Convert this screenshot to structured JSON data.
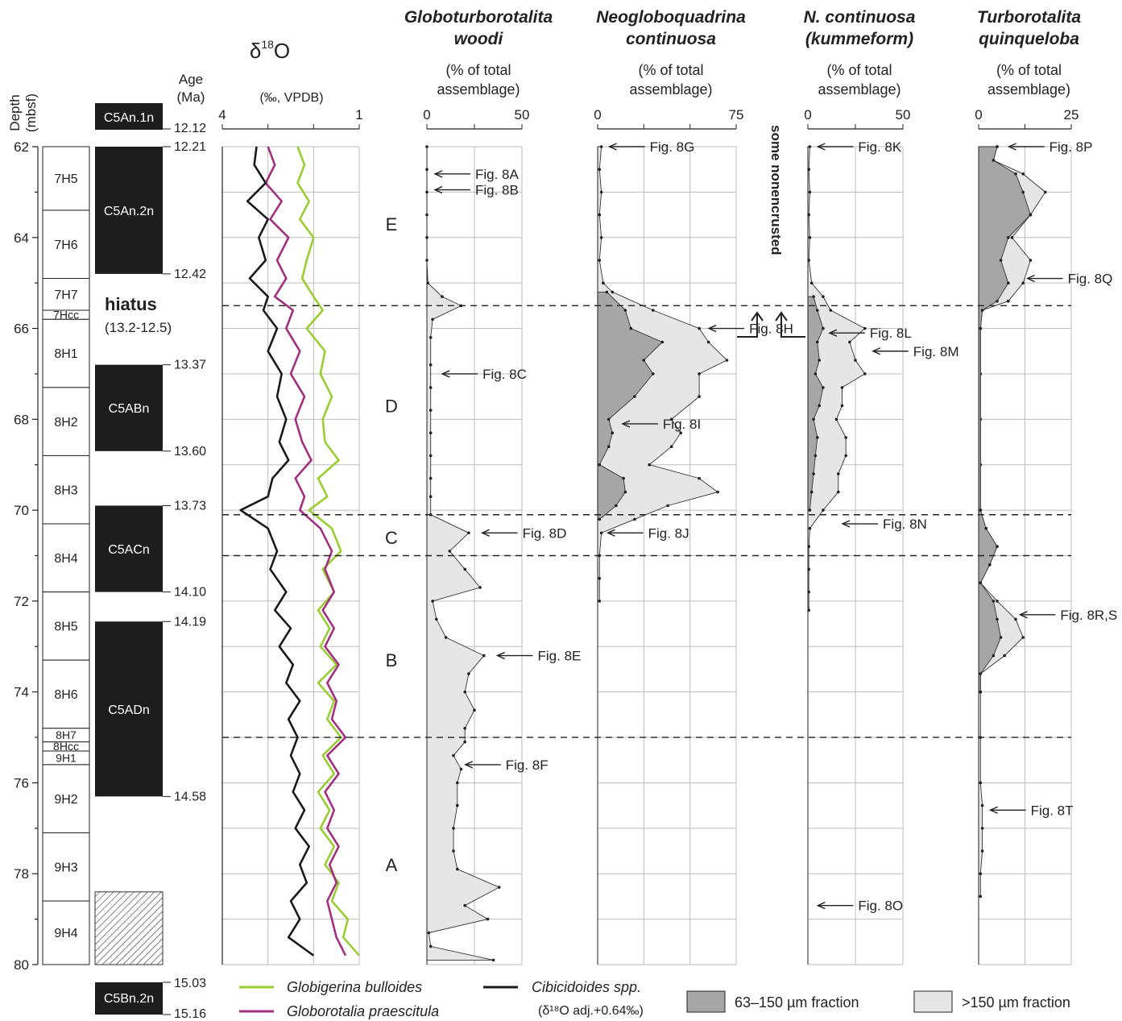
{
  "figure": {
    "depth_axis": {
      "label": "Depth",
      "unit": "(mbsf)",
      "min": 62,
      "max": 80,
      "ticks": [
        62,
        64,
        66,
        68,
        70,
        72,
        74,
        76,
        78,
        80
      ]
    },
    "age_axis": {
      "label": "Age",
      "unit": "(Ma)"
    },
    "hiatus": {
      "label": "hiatus",
      "range": "(13.2-12.5)"
    },
    "zones": [
      {
        "label": "E",
        "depth": 63.7
      },
      {
        "label": "D",
        "depth": 67.7
      },
      {
        "label": "C",
        "depth": 70.6
      },
      {
        "label": "B",
        "depth": 73.3
      },
      {
        "label": "A",
        "depth": 77.8
      }
    ],
    "zone_boundaries": [
      65.5,
      70.1,
      71.0,
      75.0
    ],
    "cores": [
      {
        "label": "7H5",
        "top": 62.0,
        "bottom": 63.4
      },
      {
        "label": "7H6",
        "top": 63.4,
        "bottom": 64.9
      },
      {
        "label": "7H7",
        "top": 64.9,
        "bottom": 65.6
      },
      {
        "label": "7Hcc",
        "top": 65.6,
        "bottom": 65.8
      },
      {
        "label": "8H1",
        "top": 65.8,
        "bottom": 67.3
      },
      {
        "label": "8H2",
        "top": 67.3,
        "bottom": 68.8
      },
      {
        "label": "8H3",
        "top": 68.8,
        "bottom": 70.3
      },
      {
        "label": "8H4",
        "top": 70.3,
        "bottom": 71.8
      },
      {
        "label": "8H5",
        "top": 71.8,
        "bottom": 73.3
      },
      {
        "label": "8H6",
        "top": 73.3,
        "bottom": 74.8
      },
      {
        "label": "8H7",
        "top": 74.8,
        "bottom": 75.1
      },
      {
        "label": "8Hcc",
        "top": 75.1,
        "bottom": 75.3
      },
      {
        "label": "9H1",
        "top": 75.3,
        "bottom": 75.6
      },
      {
        "label": "9H2",
        "top": 75.6,
        "bottom": 77.1
      },
      {
        "label": "9H3",
        "top": 77.1,
        "bottom": 78.6
      },
      {
        "label": "9H4",
        "top": 78.6,
        "bottom": 80.0
      }
    ],
    "chrons": [
      {
        "label": "C5An.1n",
        "top_age": "",
        "bottom_age": "12.12",
        "detached": "top"
      },
      {
        "label": "C5An.2n",
        "top": 62.0,
        "bottom": 64.8,
        "top_age": "12.21",
        "bottom_age": "12.42"
      },
      {
        "label": "C5ABn",
        "top": 66.8,
        "bottom": 68.7,
        "top_age": "13.37",
        "bottom_age": "13.60"
      },
      {
        "label": "C5ACn",
        "top": 69.9,
        "bottom": 71.8,
        "top_age": "13.73",
        "bottom_age": "14.10"
      },
      {
        "label": "C5ADn",
        "top": 72.45,
        "bottom": 76.3,
        "top_age": "14.19",
        "bottom_age": "14.58"
      },
      {
        "label": "C5Bn.2n",
        "top_age": "15.03",
        "bottom_age": "15.16",
        "detached": "bottom"
      }
    ],
    "legend": {
      "bulloides": "Globigerina bulloides",
      "praescitula": "Globorotalia praescitula",
      "cibicidoides": "Cibicidoides spp.",
      "cibicidoides_note": "(δ¹⁸O adj.+0.64‰)",
      "small_fraction": "63–150 µm fraction",
      "large_fraction": ">150 µm fraction"
    },
    "colors": {
      "bulloides": "#9acd32",
      "praescitula": "#a3307f",
      "cibicidoides": "#1a1a1a",
      "small_fraction": "#a6a6a6",
      "large_fraction": "#e6e6e6"
    },
    "note_vertical": "some nonencrusted"
  },
  "chart_data": [
    {
      "type": "line",
      "id": "d18o",
      "title": "δ18O",
      "xlabel": "(‰, VPDB)",
      "ylabel": "Depth (mbsf)",
      "xlim": [
        4,
        1
      ],
      "ticks": [
        4,
        1
      ],
      "ylim": [
        62,
        80
      ],
      "series": [
        {
          "name": "Globigerina bulloides",
          "key": "bulloides",
          "depth": [
            62.0,
            62.4,
            62.8,
            63.2,
            63.6,
            64.0,
            64.5,
            64.9,
            65.3,
            65.6,
            66.0,
            66.5,
            67.0,
            67.5,
            68.0,
            68.5,
            68.9,
            69.3,
            69.7,
            70.0,
            70.4,
            70.9,
            71.3,
            71.8,
            72.2,
            72.6,
            73.0,
            73.4,
            73.8,
            74.2,
            74.6,
            75.0,
            75.4,
            75.8,
            76.2,
            76.6,
            77.0,
            77.4,
            77.8,
            78.2,
            78.6,
            79.0,
            79.4,
            79.8
          ],
          "d18o": [
            2.35,
            2.2,
            2.35,
            2.1,
            2.3,
            2.0,
            2.15,
            2.25,
            2.0,
            1.8,
            2.15,
            1.75,
            1.85,
            1.6,
            1.8,
            1.75,
            1.45,
            1.9,
            1.7,
            2.1,
            1.6,
            1.4,
            1.8,
            1.55,
            1.9,
            1.65,
            1.85,
            1.5,
            1.9,
            1.55,
            1.7,
            1.4,
            1.8,
            1.55,
            1.9,
            1.65,
            1.85,
            1.55,
            1.75,
            1.45,
            1.6,
            1.25,
            1.35,
            1.0
          ]
        },
        {
          "name": "Globorotalia praescitula",
          "key": "praescitula",
          "depth": [
            62.0,
            62.4,
            62.8,
            63.2,
            63.6,
            64.0,
            64.5,
            64.9,
            65.3,
            65.6,
            66.0,
            66.5,
            67.0,
            67.5,
            68.0,
            68.5,
            68.9,
            69.3,
            69.7,
            70.0,
            70.4,
            70.9,
            71.3,
            71.8,
            72.2,
            72.6,
            73.0,
            73.4,
            73.8,
            74.2,
            74.6,
            75.0,
            75.4,
            75.8,
            76.2,
            76.6,
            77.0,
            77.4,
            77.8,
            78.2,
            78.6,
            79.0,
            79.4,
            79.8
          ],
          "d18o": [
            3.0,
            2.85,
            3.05,
            2.7,
            2.95,
            2.55,
            2.8,
            2.6,
            2.85,
            2.45,
            2.6,
            2.3,
            2.5,
            2.2,
            2.4,
            2.25,
            2.05,
            2.4,
            2.2,
            2.3,
            1.85,
            1.6,
            1.75,
            1.55,
            1.8,
            1.55,
            1.75,
            1.45,
            1.7,
            1.5,
            1.6,
            1.3,
            1.7,
            1.45,
            1.75,
            1.55,
            1.7,
            1.45,
            1.65,
            1.5,
            1.7,
            1.6,
            1.5,
            1.3
          ]
        },
        {
          "name": "Cibicidoides spp.",
          "key": "cibicidoides",
          "depth": [
            62.0,
            62.4,
            62.8,
            63.2,
            63.6,
            64.0,
            64.5,
            64.9,
            65.3,
            65.6,
            66.0,
            66.5,
            67.0,
            67.5,
            68.0,
            68.5,
            68.9,
            69.3,
            69.7,
            70.0,
            70.4,
            70.9,
            71.3,
            71.8,
            72.2,
            72.6,
            73.0,
            73.4,
            73.8,
            74.2,
            74.6,
            75.0,
            75.4,
            75.8,
            76.2,
            76.6,
            77.0,
            77.4,
            77.8,
            78.2,
            78.6,
            79.0,
            79.4,
            79.8
          ],
          "d18o": [
            3.25,
            3.3,
            3.05,
            3.45,
            3.0,
            3.2,
            3.05,
            3.4,
            3.0,
            3.1,
            2.8,
            3.0,
            2.7,
            2.8,
            2.6,
            2.75,
            2.55,
            2.9,
            3.0,
            3.6,
            3.0,
            2.8,
            2.95,
            2.6,
            2.85,
            2.5,
            2.75,
            2.45,
            2.6,
            2.3,
            2.55,
            2.35,
            2.5,
            2.3,
            2.45,
            2.2,
            2.4,
            2.1,
            2.3,
            2.15,
            2.5,
            2.3,
            2.55,
            2.0
          ]
        }
      ]
    },
    {
      "type": "area",
      "id": "woodi",
      "title": "Globoturborotalita woodi",
      "xlabel": "(% of total assemblage)",
      "xlim": [
        0,
        50
      ],
      "ticks": [
        0,
        50
      ],
      "ylim": [
        62,
        80
      ],
      "large": {
        "depth": [
          62.0,
          62.5,
          63.0,
          63.5,
          64.0,
          64.5,
          65.0,
          65.3,
          65.5,
          65.8,
          66.2,
          66.8,
          67.3,
          67.8,
          68.3,
          68.8,
          69.3,
          69.7,
          70.1,
          70.5,
          70.9,
          71.3,
          71.7,
          72.0,
          72.4,
          72.8,
          73.2,
          73.6,
          74.0,
          74.4,
          74.8,
          75.1,
          75.4,
          75.7,
          76.0,
          76.5,
          77.0,
          77.5,
          77.9,
          78.3,
          78.7,
          79.0,
          79.3,
          79.6,
          79.9
        ],
        "percent": [
          0,
          0,
          0,
          0,
          0,
          0,
          0.5,
          8,
          18,
          3,
          2,
          2,
          2,
          2,
          2,
          2,
          2,
          2,
          2,
          22,
          12,
          20,
          28,
          3,
          5,
          10,
          30,
          22,
          20,
          25,
          20,
          20,
          14,
          18,
          16,
          16,
          14,
          14,
          16,
          38,
          20,
          32,
          1,
          2,
          35
        ]
      },
      "labels": [
        {
          "text": "Fig. 8A",
          "depth": 62.6,
          "percent": 0
        },
        {
          "text": "Fig. 8B",
          "depth": 62.95,
          "percent": 0
        },
        {
          "text": "Fig. 8C",
          "depth": 67.0,
          "percent": 3
        },
        {
          "text": "Fig. 8D",
          "depth": 70.5,
          "percent": 24
        },
        {
          "text": "Fig. 8E",
          "depth": 73.2,
          "percent": 32
        },
        {
          "text": "Fig. 8F",
          "depth": 75.6,
          "percent": 16
        }
      ]
    },
    {
      "type": "area",
      "id": "continuosa",
      "title": "Neogloboquadrina continuosa",
      "xlabel": "(% of total assemblage)",
      "xlim": [
        0,
        75
      ],
      "ticks": [
        0,
        75
      ],
      "ylim": [
        62,
        80
      ],
      "large": {
        "depth": [
          62.0,
          62.5,
          63.0,
          63.5,
          64.0,
          64.5,
          65.0,
          65.2,
          65.6,
          66.0,
          66.3,
          66.7,
          67.0,
          67.5,
          68.0,
          68.3,
          68.6,
          69.0,
          69.3,
          69.6,
          69.9,
          70.2,
          70.5,
          71.0,
          71.5,
          72.0
        ],
        "percent": [
          2,
          1,
          2,
          1,
          2,
          1,
          3,
          8,
          30,
          55,
          60,
          70,
          55,
          55,
          40,
          45,
          40,
          28,
          55,
          65,
          38,
          20,
          2,
          1,
          1,
          1
        ]
      },
      "small": {
        "depth": [
          65.2,
          65.6,
          66.0,
          66.3,
          66.7,
          67.0,
          67.5,
          68.0,
          68.3,
          68.6,
          69.0,
          69.3,
          69.6,
          69.9,
          70.2
        ],
        "percent": [
          5,
          15,
          18,
          35,
          25,
          30,
          20,
          6,
          8,
          6,
          1,
          14,
          15,
          10,
          1
        ]
      },
      "labels": [
        {
          "text": "Fig. 8G",
          "depth": 62.0,
          "percent": 2
        },
        {
          "text": "Fig. 8H",
          "depth": 66.0,
          "percent": 55
        },
        {
          "text": "Fig. 8I",
          "depth": 68.1,
          "percent": 10
        },
        {
          "text": "Fig. 8J",
          "depth": 70.5,
          "percent": 2
        }
      ]
    },
    {
      "type": "area",
      "id": "kummeform",
      "title": "N. continuosa (kummeform)",
      "xlabel": "(% of total assemblage)",
      "xlim": [
        0,
        50
      ],
      "ticks": [
        0,
        50
      ],
      "ylim": [
        62,
        80
      ],
      "large": {
        "depth": [
          62.0,
          62.5,
          63.0,
          63.5,
          64.0,
          64.5,
          65.0,
          65.3,
          65.6,
          66.0,
          66.3,
          66.7,
          67.0,
          67.3,
          67.7,
          68.0,
          68.4,
          68.8,
          69.2,
          69.6,
          70.0,
          70.4,
          70.8,
          71.3,
          71.8,
          72.2
        ],
        "percent": [
          1,
          0.5,
          1,
          0.5,
          1,
          0.5,
          2,
          8,
          12,
          30,
          22,
          25,
          30,
          18,
          18,
          15,
          20,
          20,
          16,
          16,
          8,
          1,
          0.5,
          0.5,
          0.5,
          0.5
        ]
      },
      "small": {
        "depth": [
          65.3,
          65.6,
          66.0,
          66.3,
          66.7,
          67.0,
          67.3,
          67.7,
          68.0,
          68.4,
          68.8,
          69.2,
          69.6,
          70.0
        ],
        "percent": [
          3,
          5,
          8,
          5,
          6,
          4,
          8,
          6,
          3,
          5,
          4,
          3,
          2,
          1
        ]
      },
      "labels": [
        {
          "text": "Fig. 8K",
          "depth": 62.0,
          "percent": 1
        },
        {
          "text": "Fig. 8L",
          "depth": 66.1,
          "percent": 8
        },
        {
          "text": "Fig. 8M",
          "depth": 66.5,
          "percent": 30
        },
        {
          "text": "Fig. 8N",
          "depth": 70.3,
          "percent": 14
        },
        {
          "text": "Fig. 8O",
          "depth": 78.7,
          "percent": 1
        }
      ]
    },
    {
      "type": "area",
      "id": "quinqueloba",
      "title": "Turborotalita quinqueloba",
      "xlabel": "(% of total assemblage)",
      "xlim": [
        0,
        25
      ],
      "ticks": [
        0,
        25
      ],
      "ylim": [
        62,
        80
      ],
      "small": {
        "depth": [
          62.0,
          62.3,
          62.6,
          63.0,
          63.5,
          64.0,
          64.5,
          65.0,
          65.4,
          65.6,
          66.0,
          70.0,
          70.4,
          70.8,
          71.2,
          71.6,
          72.0,
          72.4,
          72.8,
          73.2,
          73.6,
          74.0
        ],
        "percent": [
          5,
          4,
          10,
          12,
          14,
          8,
          6,
          8,
          5,
          1,
          0.5,
          0.5,
          2,
          5,
          3,
          0.5,
          4,
          5,
          6,
          4,
          0.5,
          0.5
        ]
      },
      "large": {
        "depth": [
          62.0,
          62.3,
          62.6,
          63.0,
          63.5,
          64.0,
          64.5,
          65.0,
          65.4,
          65.6,
          66.0,
          67.0,
          68.0,
          69.0,
          70.0,
          70.4,
          70.8,
          71.2,
          71.6,
          72.0,
          72.4,
          72.8,
          73.2,
          73.6,
          74.0,
          75.0,
          76.0,
          76.5,
          77.0,
          77.5,
          78.0,
          78.5
        ],
        "percent": [
          5,
          4,
          12,
          18,
          14,
          9,
          14,
          12,
          8,
          1,
          0.5,
          0.5,
          0.5,
          0.5,
          0.5,
          2,
          5,
          3,
          0.5,
          5,
          10,
          12,
          7,
          0.5,
          0.5,
          0.5,
          0.5,
          1,
          1,
          1,
          0.5,
          0.5
        ]
      },
      "labels": [
        {
          "text": "Fig. 8P",
          "depth": 62.0,
          "percent": 6
        },
        {
          "text": "Fig. 8Q",
          "depth": 64.9,
          "percent": 11
        },
        {
          "text": "Fig. 8R,S",
          "depth": 72.3,
          "percent": 9
        },
        {
          "text": "Fig. 8T",
          "depth": 76.6,
          "percent": 1
        }
      ]
    }
  ]
}
